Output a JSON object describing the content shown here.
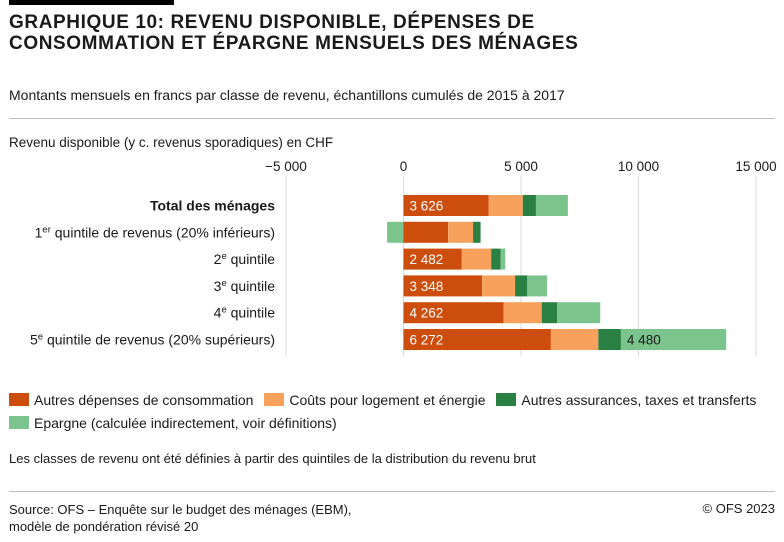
{
  "header": {
    "title": "GRAPHIQUE 10: REVENU DISPONIBLE, DÉPENSES DE CONSOMMATION ET ÉPARGNE MENSUELS DES MÉNAGES",
    "subtitle": "Montants mensuels en francs par classe de revenu, échantillons cumulés de 2015 à 2017"
  },
  "chart_data": {
    "type": "bar",
    "orientation": "horizontal",
    "stacked": true,
    "xlabel": "Revenu disponible (y c. revenus sporadiques) en CHF",
    "xlim": [
      -5000,
      15000
    ],
    "xticks": [
      -5000,
      0,
      5000,
      10000,
      15000
    ],
    "xtick_labels": [
      "−5 000",
      "0",
      "5 000",
      "10 000",
      "15 000"
    ],
    "grid": "vertical",
    "categories": [
      {
        "label": "Total des ménages",
        "sup": "",
        "rest": "",
        "bold": true
      },
      {
        "label": "1",
        "sup": "er",
        "rest": " quintile de revenus (20% inférieurs)",
        "bold": false
      },
      {
        "label": "2",
        "sup": "e",
        "rest": " quintile",
        "bold": false
      },
      {
        "label": "3",
        "sup": "e",
        "rest": " quintile",
        "bold": false
      },
      {
        "label": "4",
        "sup": "e",
        "rest": " quintile",
        "bold": false
      },
      {
        "label": "5",
        "sup": "e",
        "rest": " quintile de revenus (20% supérieurs)",
        "bold": false
      }
    ],
    "series": [
      {
        "name": "Autres dépenses de consommation",
        "color": "#cc4d0c",
        "values": [
          3626,
          1900,
          2482,
          3348,
          4262,
          6272
        ]
      },
      {
        "name": "Coûts pour logement et énergie",
        "color": "#f7a15d",
        "values": [
          1450,
          1060,
          1250,
          1400,
          1620,
          2020
        ]
      },
      {
        "name": "Autres assurances, taxes et transferts",
        "color": "#2a8042",
        "values": [
          560,
          320,
          400,
          520,
          650,
          960
        ]
      },
      {
        "name": "Epargne (calculée indirectement, voir définitions)",
        "color": "#7cc48e",
        "values": [
          1360,
          -700,
          200,
          840,
          1840,
          4480
        ]
      }
    ],
    "data_labels": [
      {
        "series": 0,
        "category": 0,
        "text": "3 626"
      },
      {
        "series": 0,
        "category": 2,
        "text": "2 482"
      },
      {
        "series": 0,
        "category": 3,
        "text": "3 348"
      },
      {
        "series": 0,
        "category": 4,
        "text": "4 262"
      },
      {
        "series": 0,
        "category": 5,
        "text": "6 272"
      },
      {
        "series": 3,
        "category": 5,
        "text": "4 480"
      }
    ],
    "legend_position": "bottom"
  },
  "note": "Les classes de revenu ont été définies à partir des quintiles de la distribution du revenu brut",
  "footer": {
    "source_line1": "Source: OFS – Enquête sur le budget des ménages (EBM),",
    "source_line2": "modèle de pondération révisé 20",
    "copyright": "© OFS 2023"
  }
}
